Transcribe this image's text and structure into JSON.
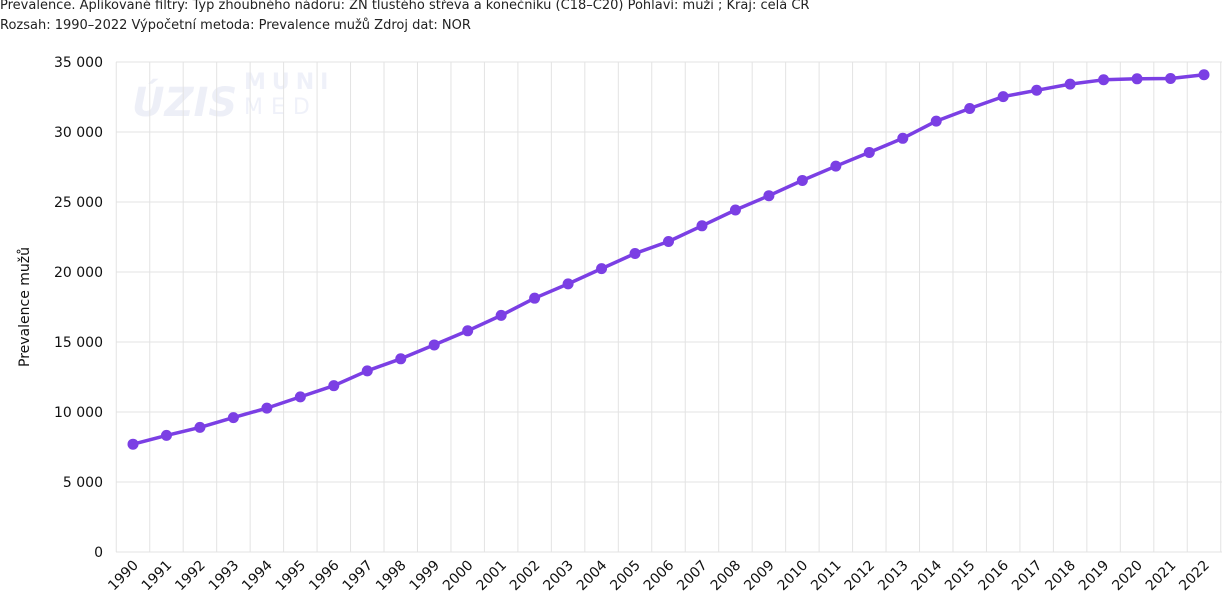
{
  "header": {
    "line1": "Prevalence. Aplikované filtry: Typ zhoubného nádoru: ZN tlustého střeva a konečníku (C18–C20) Pohlaví: muži ; Kraj: celá ČR",
    "line2": "Rozsah: 1990–2022 Výpočetní metoda: Prevalence mužů Zdroj dat: NOR"
  },
  "watermark": {
    "left": "ÚZIS",
    "right_top": "MUNI",
    "right_bottom": "MED"
  },
  "chart_data": {
    "type": "line",
    "title": "",
    "xlabel": "",
    "ylabel": "Prevalence mužů",
    "ylim": [
      0,
      35000
    ],
    "yticks": [
      "0",
      "5 000",
      "10 000",
      "15 000",
      "20 000",
      "25 000",
      "30 000",
      "35 000"
    ],
    "ytick_values": [
      0,
      5000,
      10000,
      15000,
      20000,
      25000,
      30000,
      35000
    ],
    "categories": [
      "1990",
      "1991",
      "1992",
      "1993",
      "1994",
      "1995",
      "1996",
      "1997",
      "1998",
      "1999",
      "2000",
      "2001",
      "2002",
      "2003",
      "2004",
      "2005",
      "2006",
      "2007",
      "2008",
      "2009",
      "2010",
      "2011",
      "2012",
      "2013",
      "2014",
      "2015",
      "2016",
      "2017",
      "2018",
      "2019",
      "2020",
      "2021",
      "2022"
    ],
    "series": [
      {
        "color": "#7b3fe4",
        "values": [
          7700,
          8330,
          8900,
          9600,
          10280,
          11080,
          11880,
          12940,
          13800,
          14790,
          15800,
          16900,
          18130,
          19150,
          20240,
          21320,
          22180,
          23300,
          24430,
          25450,
          26540,
          27560,
          28540,
          29550,
          30780,
          31680,
          32530,
          32980,
          33420,
          33730,
          33800,
          33820,
          34090
        ]
      }
    ],
    "grid": true,
    "legend": "none"
  }
}
